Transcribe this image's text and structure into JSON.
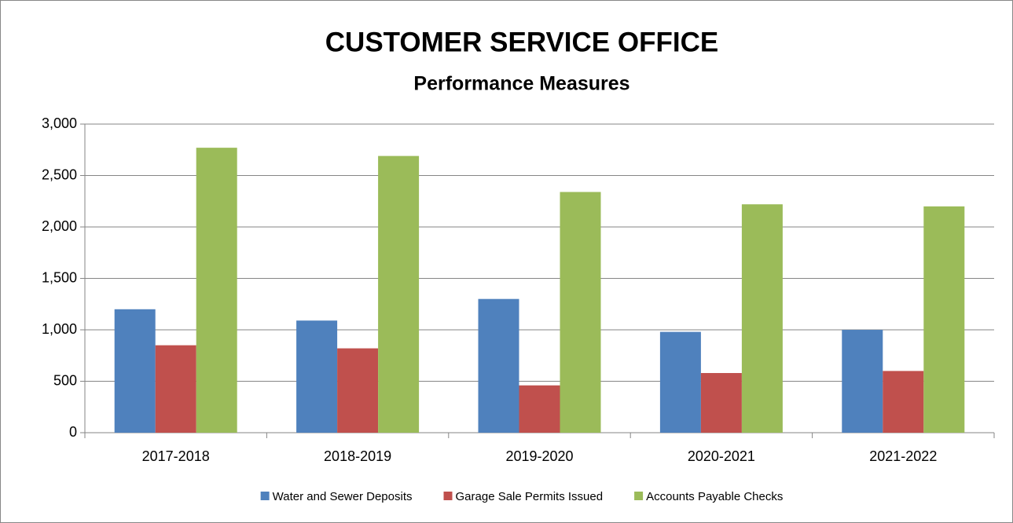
{
  "chart_data": {
    "type": "bar",
    "title": "CUSTOMER SERVICE OFFICE",
    "subtitle": "Performance Measures",
    "categories": [
      "2017-2018",
      "2018-2019",
      "2019-2020",
      "2020-2021",
      "2021-2022"
    ],
    "series": [
      {
        "name": "Water and Sewer Deposits",
        "color": "#4f81bd",
        "values": [
          1200,
          1090,
          1300,
          980,
          1000
        ]
      },
      {
        "name": "Garage Sale Permits Issued",
        "color": "#c0504d",
        "values": [
          850,
          820,
          460,
          580,
          600
        ]
      },
      {
        "name": "Accounts Payable Checks",
        "color": "#9bbb59",
        "values": [
          2770,
          2690,
          2340,
          2220,
          2200
        ]
      }
    ],
    "ylim": [
      0,
      3000
    ],
    "yticks": [
      0,
      500,
      {
        "value": 1000,
        "label": "1,000"
      },
      {
        "value": 1500,
        "label": "1,500"
      },
      {
        "value": 2000,
        "label": "2,000"
      },
      {
        "value": 2500,
        "label": "2,500"
      },
      {
        "value": 3000,
        "label": "3,000"
      }
    ],
    "grid": true,
    "legend": "bottom"
  }
}
